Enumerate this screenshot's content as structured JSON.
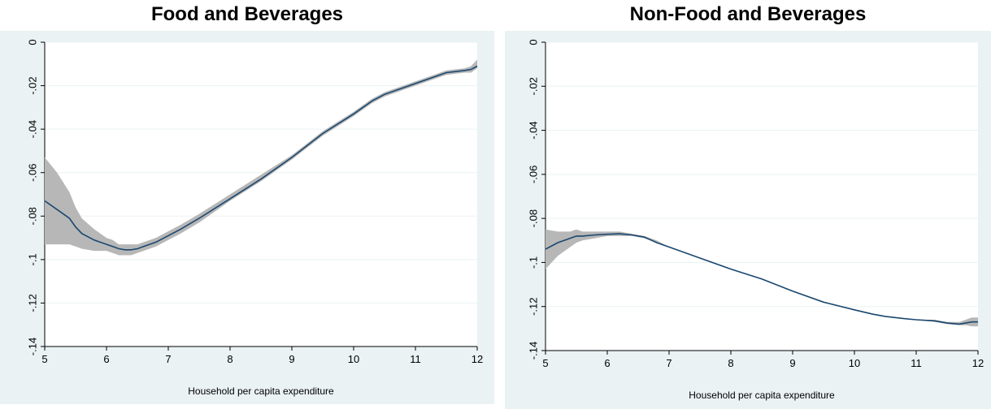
{
  "chart_data": [
    {
      "type": "line",
      "title": "Food and Beverages",
      "xlabel": "Household per capita expenditure",
      "ylabel": "",
      "xlim": [
        5,
        12
      ],
      "ylim": [
        -0.14,
        0
      ],
      "xticks": [
        "5",
        "6",
        "7",
        "8",
        "9",
        "10",
        "11",
        "12"
      ],
      "yticks": [
        "0",
        "-.02",
        "-.04",
        "-.06",
        "-.08",
        "-.1",
        "-.12",
        "-.14"
      ],
      "grid": true,
      "colors": {
        "line": "#1a476f",
        "band": "#b7b7b7",
        "background": "#eaf2f3",
        "plot": "#ffffff"
      },
      "series": [
        {
          "x": [
            5.0,
            5.2,
            5.4,
            5.5,
            5.6,
            5.8,
            6.0,
            6.1,
            6.2,
            6.3,
            6.4,
            6.5,
            6.6,
            6.8,
            7.0,
            7.2,
            7.5,
            8.0,
            8.5,
            9.0,
            9.5,
            10.0,
            10.3,
            10.5,
            10.8,
            11.0,
            11.3,
            11.5,
            11.8,
            11.9,
            12.0
          ],
          "y": [
            -0.073,
            -0.077,
            -0.081,
            -0.085,
            -0.088,
            -0.091,
            -0.093,
            -0.094,
            -0.095,
            -0.0955,
            -0.0955,
            -0.095,
            -0.094,
            -0.092,
            -0.089,
            -0.086,
            -0.081,
            -0.072,
            -0.063,
            -0.053,
            -0.042,
            -0.033,
            -0.027,
            -0.024,
            -0.021,
            -0.019,
            -0.016,
            -0.014,
            -0.013,
            -0.0125,
            -0.011
          ],
          "lower": [
            -0.093,
            -0.093,
            -0.093,
            -0.094,
            -0.095,
            -0.096,
            -0.096,
            -0.097,
            -0.098,
            -0.098,
            -0.098,
            -0.097,
            -0.096,
            -0.094,
            -0.091,
            -0.088,
            -0.083,
            -0.073,
            -0.064,
            -0.054,
            -0.043,
            -0.034,
            -0.028,
            -0.025,
            -0.022,
            -0.02,
            -0.017,
            -0.015,
            -0.014,
            -0.014,
            -0.012
          ],
          "upper": [
            -0.053,
            -0.06,
            -0.069,
            -0.076,
            -0.081,
            -0.086,
            -0.09,
            -0.091,
            -0.093,
            -0.093,
            -0.093,
            -0.093,
            -0.092,
            -0.09,
            -0.087,
            -0.084,
            -0.079,
            -0.07,
            -0.061,
            -0.052,
            -0.041,
            -0.032,
            -0.026,
            -0.023,
            -0.02,
            -0.018,
            -0.015,
            -0.013,
            -0.012,
            -0.011,
            -0.008
          ]
        }
      ]
    },
    {
      "type": "line",
      "title": "Non-Food and Beverages",
      "xlabel": "Household per capita expenditure",
      "ylabel": "",
      "xlim": [
        5,
        12
      ],
      "ylim": [
        -0.14,
        0
      ],
      "xticks": [
        "5",
        "6",
        "7",
        "8",
        "9",
        "10",
        "11",
        "12"
      ],
      "yticks": [
        "0",
        "-.02",
        "-.04",
        "-.06",
        "-.08",
        "-.1",
        "-.12",
        "-.14"
      ],
      "grid": true,
      "colors": {
        "line": "#1a476f",
        "band": "#b7b7b7",
        "background": "#eaf2f3",
        "plot": "#ffffff"
      },
      "series": [
        {
          "x": [
            5.0,
            5.2,
            5.4,
            5.5,
            5.6,
            5.8,
            6.0,
            6.2,
            6.4,
            6.6,
            6.8,
            7.0,
            7.5,
            8.0,
            8.5,
            9.0,
            9.5,
            10.0,
            10.3,
            10.5,
            10.8,
            11.0,
            11.3,
            11.5,
            11.7,
            11.8,
            11.9,
            12.0
          ],
          "y": [
            -0.094,
            -0.091,
            -0.089,
            -0.088,
            -0.088,
            -0.0875,
            -0.0872,
            -0.087,
            -0.0875,
            -0.0885,
            -0.091,
            -0.093,
            -0.098,
            -0.103,
            -0.1075,
            -0.113,
            -0.118,
            -0.1215,
            -0.1235,
            -0.1245,
            -0.1255,
            -0.126,
            -0.1265,
            -0.1275,
            -0.128,
            -0.1275,
            -0.127,
            -0.127
          ],
          "lower": [
            -0.103,
            -0.097,
            -0.093,
            -0.091,
            -0.09,
            -0.089,
            -0.088,
            -0.088,
            -0.088,
            -0.089,
            -0.091,
            -0.093,
            -0.098,
            -0.103,
            -0.1075,
            -0.113,
            -0.118,
            -0.1215,
            -0.1235,
            -0.1245,
            -0.1255,
            -0.126,
            -0.127,
            -0.128,
            -0.1285,
            -0.1285,
            -0.129,
            -0.129
          ],
          "upper": [
            -0.085,
            -0.086,
            -0.086,
            -0.085,
            -0.086,
            -0.086,
            -0.086,
            -0.086,
            -0.087,
            -0.088,
            -0.09,
            -0.093,
            -0.098,
            -0.103,
            -0.1075,
            -0.113,
            -0.118,
            -0.1215,
            -0.1235,
            -0.1245,
            -0.1255,
            -0.126,
            -0.126,
            -0.127,
            -0.127,
            -0.126,
            -0.125,
            -0.125
          ]
        }
      ]
    }
  ]
}
